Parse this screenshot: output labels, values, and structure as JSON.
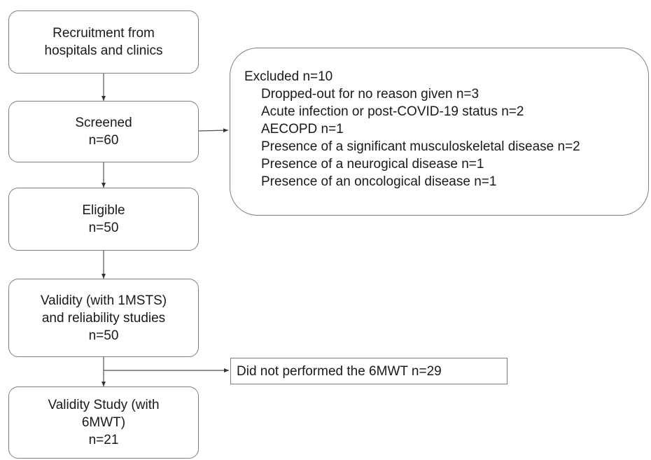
{
  "boxes": {
    "recruitment": [
      "Recruitment from",
      "hospitals and clinics"
    ],
    "screened": [
      "Screened",
      "n=60"
    ],
    "eligible": [
      "Eligible",
      "n=50"
    ],
    "validity_reliability": [
      "Validity (with 1MSTS)",
      "and reliability studies",
      "n=50"
    ],
    "validity_6mwt": [
      "Validity Study (with",
      "6MWT)",
      "n=21"
    ]
  },
  "excluded": {
    "heading": "Excluded n=10",
    "reasons": [
      "Dropped-out for no reason given n=3",
      "Acute infection or post-COVID-19 status n=2",
      "AECOPD n=1",
      "Presence of a significant musculoskeletal disease n=2",
      "Presence of a neurogical disease n=1",
      "Presence of an oncological disease n=1"
    ]
  },
  "not_performed": "Did not performed the 6MWT n=29"
}
